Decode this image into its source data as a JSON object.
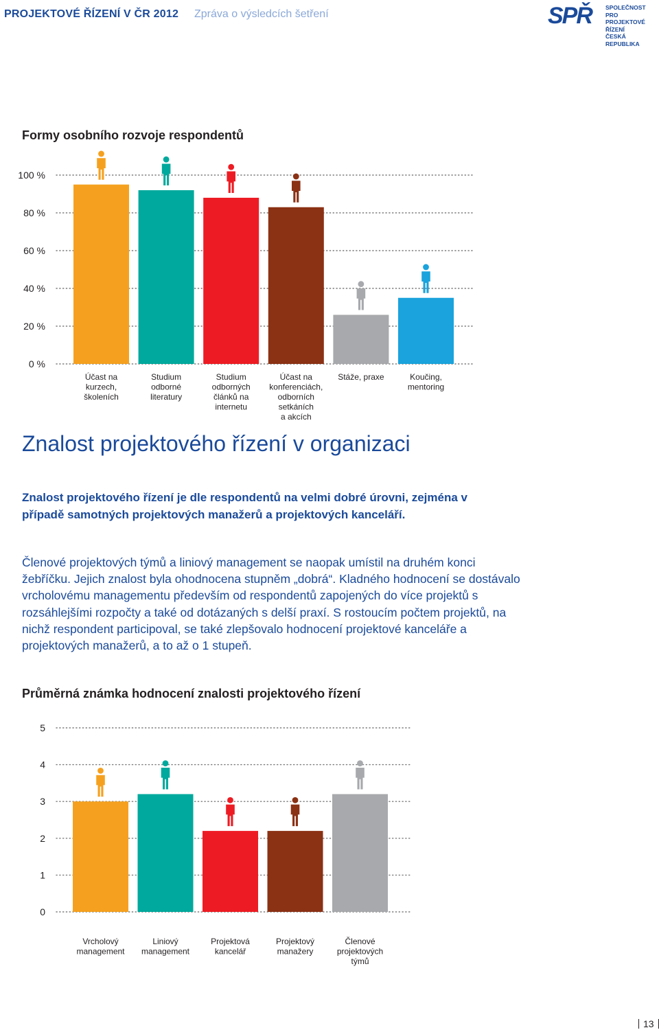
{
  "header": {
    "title": "PROJEKTOVÉ ŘÍZENÍ V ČR 2012",
    "subtitle": "Zpráva o výsledcích šetření",
    "logo_mark": "SPŘ",
    "logo_lines": [
      "SPOLEČNOST PRO",
      "PROJEKTOVÉ ŘÍZENÍ",
      "ČESKÁ REPUBLIKA"
    ]
  },
  "section_title": "Znalost projektového řízení v organizaci",
  "lead": "Znalost projektového řízení je dle respondentů na velmi dobré úrovni, zejména v případě samotných projektových manažerů a projektových kanceláří.",
  "body": "Členové projektových týmů a liniový management se naopak umístil na druhém konci žebříčku. Jejich znalost byla ohodnocena stupněm „dobrá“. Kladného hodnocení se dostávalo vrcholovému managementu především od respondentů zapojených do více projektů s rozsáhlejšími rozpočty a také od dotázaných s delší praxí. S rostoucím počtem projektů, na nichž respondent participoval, se také zlepšovalo hodnocení projektové kanceláře a projektových manažerů, a to až o 1 stupeň.",
  "page_number": "13",
  "colors": {
    "orange": "#f5a11f",
    "teal": "#00a99d",
    "red": "#ed1c24",
    "brown": "#8b3114",
    "gray": "#a7a9ac",
    "blue": "#1aa3dc",
    "navy": "#1a4a9a"
  },
  "chart_data": [
    {
      "type": "bar",
      "title": "Formy osobního rozvoje respondentů",
      "categories": [
        [
          "Účast na",
          "kurzech,",
          "školeních"
        ],
        [
          "Studium",
          "odborné",
          "literatury"
        ],
        [
          "Studium",
          "odborných",
          "článků na",
          "internetu"
        ],
        [
          "Účast na",
          "konferenciách,",
          "odborních",
          "setkáních",
          "a akcích"
        ],
        [
          "Stáže, praxe"
        ],
        [
          "Koučing,",
          "mentoring"
        ]
      ],
      "values": [
        95,
        92,
        88,
        83,
        26,
        35
      ],
      "colors": [
        "#f5a11f",
        "#00a99d",
        "#ed1c24",
        "#8b3114",
        "#a7a9ac",
        "#1aa3dc"
      ],
      "y_ticks": [
        "0 %",
        "20 %",
        "40 %",
        "60 %",
        "80 %",
        "100 %"
      ],
      "ylim": [
        0,
        100
      ],
      "grid": "dotted"
    },
    {
      "type": "bar",
      "title": "Průměrná známka hodnocení znalosti projektového řízení",
      "categories": [
        [
          "Vrcholový",
          "management"
        ],
        [
          "Liniový",
          "management"
        ],
        [
          "Projektová",
          "kancelář"
        ],
        [
          "Projektový",
          "manažery"
        ],
        [
          "Členové",
          "projektových",
          "týmů"
        ]
      ],
      "values": [
        3.0,
        3.2,
        2.2,
        2.2,
        3.2
      ],
      "colors": [
        "#f5a11f",
        "#00a99d",
        "#ed1c24",
        "#8b3114",
        "#a7a9ac"
      ],
      "y_ticks": [
        "0",
        "1",
        "2",
        "3",
        "4",
        "5"
      ],
      "ylim": [
        0,
        5
      ],
      "grid": "dotted"
    }
  ]
}
